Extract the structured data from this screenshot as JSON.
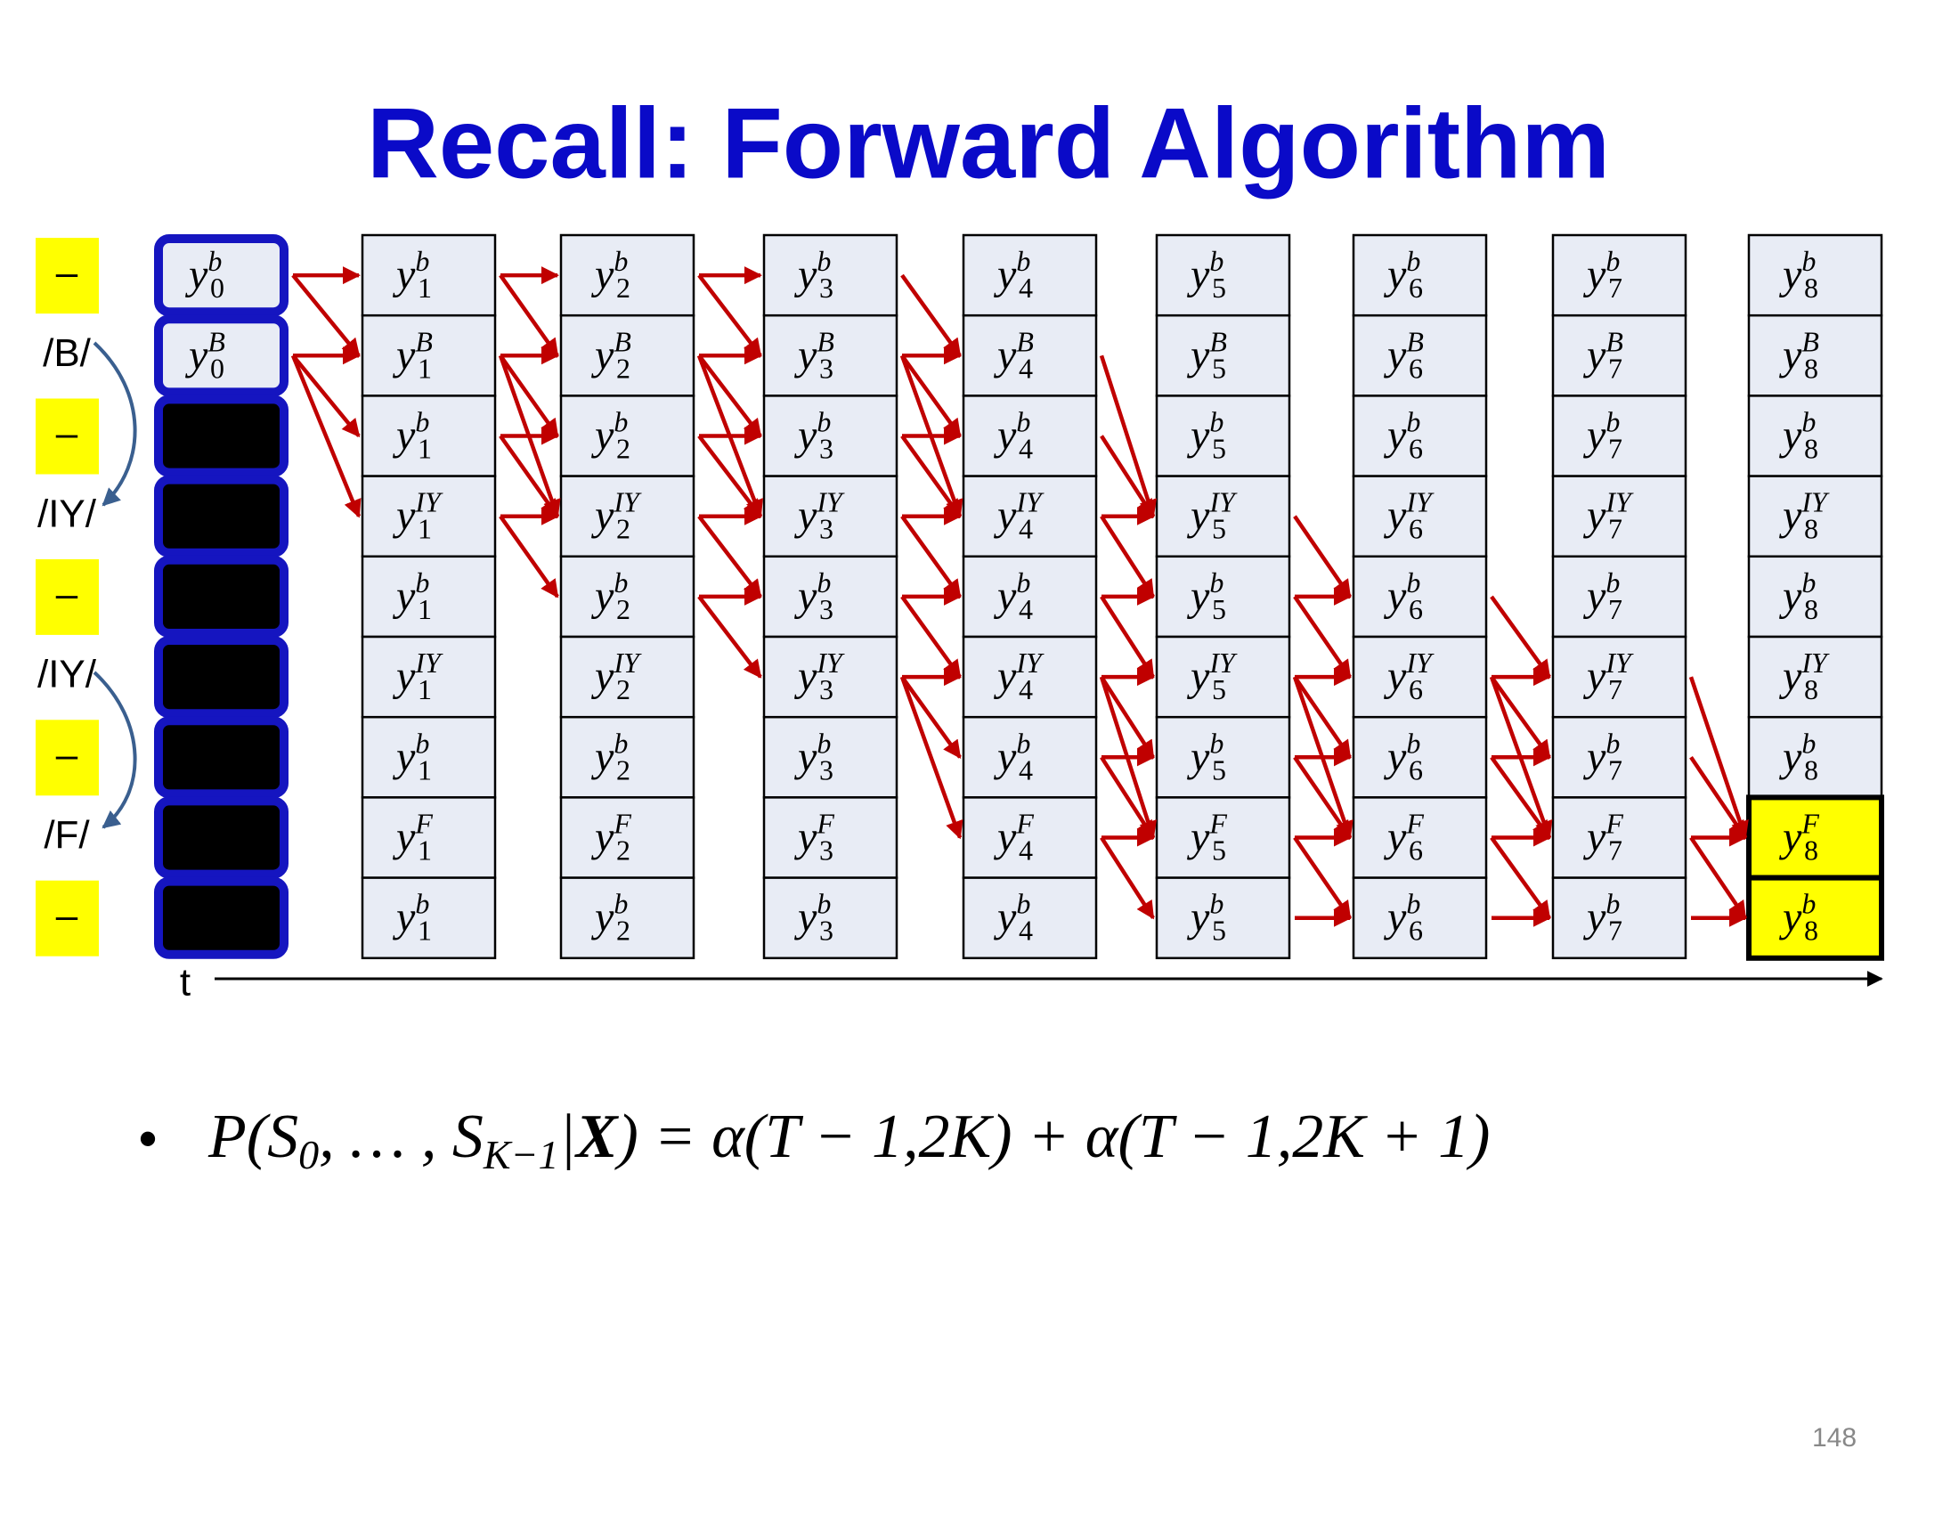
{
  "title": "Recall: Forward Algorithm",
  "row_labels": [
    "–",
    "/B/",
    "–",
    "/IY/",
    "–",
    "/IY/",
    "–",
    "/F/",
    "–"
  ],
  "trellis": {
    "base": "y",
    "highlight_rows": [
      7,
      8
    ],
    "columns": [
      {
        "index": "0",
        "states": [
          "b",
          "B"
        ]
      },
      {
        "index": "1",
        "states": [
          "b",
          "B",
          "b",
          "IY",
          "b",
          "IY",
          "b",
          "F",
          "b"
        ]
      },
      {
        "index": "2",
        "states": [
          "b",
          "B",
          "b",
          "IY",
          "b",
          "IY",
          "b",
          "F",
          "b"
        ]
      },
      {
        "index": "3",
        "states": [
          "b",
          "B",
          "b",
          "IY",
          "b",
          "IY",
          "b",
          "F",
          "b"
        ]
      },
      {
        "index": "4",
        "states": [
          "b",
          "B",
          "b",
          "IY",
          "b",
          "IY",
          "b",
          "F",
          "b"
        ]
      },
      {
        "index": "5",
        "states": [
          "b",
          "B",
          "b",
          "IY",
          "b",
          "IY",
          "b",
          "F",
          "b"
        ]
      },
      {
        "index": "6",
        "states": [
          "b",
          "B",
          "b",
          "IY",
          "b",
          "IY",
          "b",
          "F",
          "b"
        ]
      },
      {
        "index": "7",
        "states": [
          "b",
          "B",
          "b",
          "IY",
          "b",
          "IY",
          "b",
          "F",
          "b"
        ]
      },
      {
        "index": "8",
        "states": [
          "b",
          "B",
          "b",
          "IY",
          "b",
          "IY",
          "b",
          "F",
          "b"
        ]
      }
    ]
  },
  "axis_label": "t",
  "formula": {
    "bullet": "•",
    "parts": [
      {
        "text": "P(S"
      },
      {
        "text": "0",
        "sub": true
      },
      {
        "text": ", … , S"
      },
      {
        "text": "K−1",
        "sub": true
      },
      {
        "text": "|"
      },
      {
        "text": "X",
        "bold": true
      },
      {
        "text": ") =  α(T − 1,2K) + α(T − 1,2K + 1)"
      }
    ]
  },
  "page_number": "148"
}
